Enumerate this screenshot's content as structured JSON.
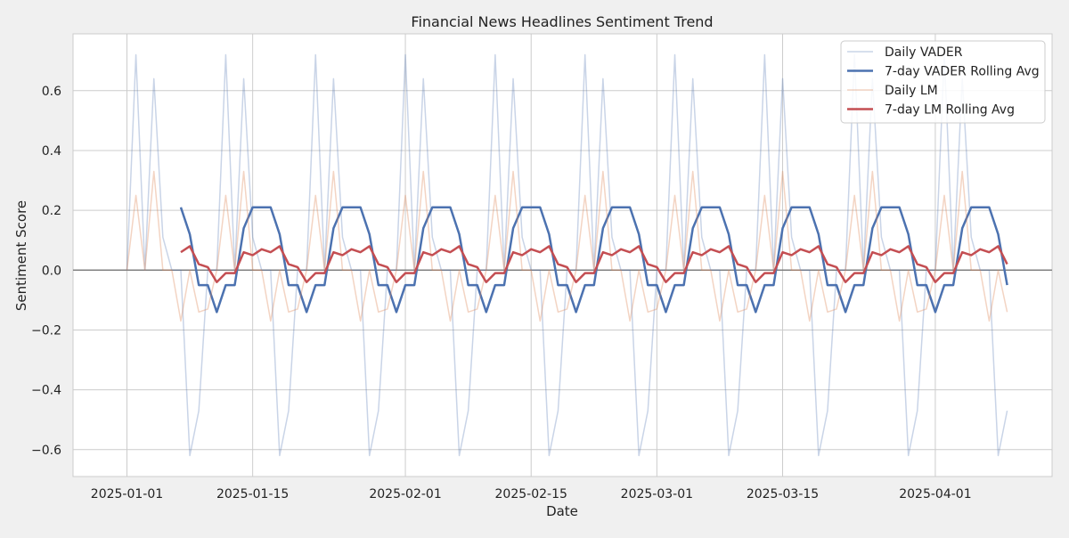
{
  "chart_data": {
    "type": "line",
    "title": "Financial News Headlines Sentiment Trend",
    "xlabel": "Date",
    "ylabel": "Sentiment Score",
    "x_start": "2025-01-01",
    "x_end": "2025-04-09",
    "xlim": [
      "2024-12-26",
      "2025-04-14"
    ],
    "ylim": [
      -0.69,
      0.79
    ],
    "grid": true,
    "zero_line": true,
    "x_ticks": [
      {
        "date": "2025-01-01",
        "label": "2025-01-01"
      },
      {
        "date": "2025-01-15",
        "label": "2025-01-15"
      },
      {
        "date": "2025-02-01",
        "label": "2025-02-01"
      },
      {
        "date": "2025-02-15",
        "label": "2025-02-15"
      },
      {
        "date": "2025-03-01",
        "label": "2025-03-01"
      },
      {
        "date": "2025-03-15",
        "label": "2025-03-15"
      },
      {
        "date": "2025-04-01",
        "label": "2025-04-01"
      }
    ],
    "y_ticks": [
      {
        "value": -0.6,
        "label": "−0.6"
      },
      {
        "value": -0.4,
        "label": "−0.4"
      },
      {
        "value": -0.2,
        "label": "−0.2"
      },
      {
        "value": 0.0,
        "label": "0.0"
      },
      {
        "value": 0.2,
        "label": "0.2"
      },
      {
        "value": 0.4,
        "label": "0.4"
      },
      {
        "value": 0.6,
        "label": "0.6"
      }
    ],
    "legend_position": "top-right",
    "series": [
      {
        "name": "Daily VADER",
        "color": "#4c72b0",
        "opacity": 0.3,
        "width": 1.5,
        "start_date": "2025-01-01",
        "pattern": [
          0.0,
          0.72,
          0.0,
          0.64,
          0.11,
          0.0,
          0.0,
          -0.62,
          -0.47,
          0.0
        ],
        "count": 99
      },
      {
        "name": "7-day VADER Rolling Avg",
        "color": "#4c72b0",
        "opacity": 1.0,
        "width": 2.5,
        "start_date": "2025-01-07",
        "pattern": [
          0.21,
          0.12,
          -0.05,
          -0.05,
          -0.14,
          -0.05,
          -0.05,
          0.14,
          0.21,
          0.21
        ],
        "count": 93
      },
      {
        "name": "Daily LM",
        "color": "#dd8452",
        "opacity": 0.35,
        "width": 1.5,
        "start_date": "2025-01-01",
        "pattern": [
          0.0,
          0.25,
          0.0,
          0.33,
          0.0,
          0.0,
          -0.17,
          0.0,
          -0.14,
          -0.13
        ],
        "count": 99
      },
      {
        "name": "7-day LM Rolling Avg",
        "color": "#c44e52",
        "opacity": 1.0,
        "width": 2.5,
        "start_date": "2025-01-07",
        "pattern": [
          0.06,
          0.08,
          0.02,
          0.01,
          -0.04,
          -0.01,
          -0.01,
          0.06,
          0.05,
          0.07
        ],
        "count": 93
      }
    ]
  }
}
